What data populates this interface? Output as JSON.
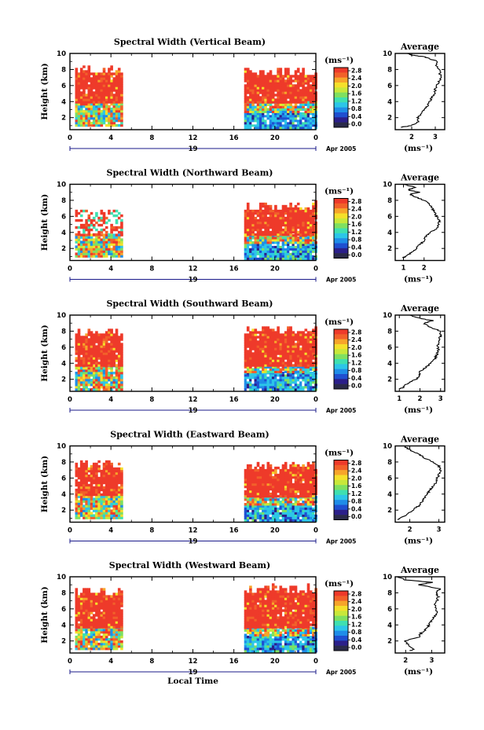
{
  "colors": {
    "palette": [
      "#2a2a4a",
      "#2b1f8a",
      "#1f4fd0",
      "#1f8de8",
      "#2cc6e8",
      "#3fe0b0",
      "#7fe060",
      "#c8e83a",
      "#f5e02a",
      "#f7a52a",
      "#f2612a",
      "#ee3a2a"
    ],
    "axis": "#000000",
    "profile_line": "#000000",
    "date_line": "#1a1a8a"
  },
  "chart_data": [
    {
      "type": "heatmap",
      "title": "Spectral Width (Vertical Beam)",
      "ylabel": "Height (km)",
      "xlim": [
        0,
        24
      ],
      "ylim": [
        0.5,
        10
      ],
      "xticks": [
        "0",
        "4",
        "8",
        "12",
        "16",
        "20",
        "0"
      ],
      "yticks": [
        "2",
        "4",
        "6",
        "8",
        "10"
      ],
      "date_label": "19",
      "date_suffix": "Apr 2005",
      "colorbar": {
        "unit": "(ms⁻¹)",
        "ticks": [
          "2.8",
          "2.4",
          "2.0",
          "1.6",
          "1.2",
          "0.8",
          "0.4",
          "0.0"
        ]
      },
      "blocks": [
        {
          "t0": 0.5,
          "t1": 5.0,
          "h0": 0.9,
          "h1": 3.8,
          "level": "mixed"
        },
        {
          "t0": 0.5,
          "t1": 5.0,
          "h0": 3.8,
          "h1": 8.3,
          "level": "high"
        },
        {
          "t0": 17.0,
          "t1": 24.0,
          "h0": 0.6,
          "h1": 2.6,
          "level": "low"
        },
        {
          "t0": 17.0,
          "t1": 24.0,
          "h0": 2.6,
          "h1": 3.8,
          "level": "mixed"
        },
        {
          "t0": 17.0,
          "t1": 24.0,
          "h0": 3.8,
          "h1": 8.2,
          "level": "high"
        }
      ],
      "average": {
        "title": "Average",
        "xlabel": "(ms⁻¹)",
        "xlim": [
          1.3,
          3.4
        ],
        "xticks": [
          2,
          3
        ],
        "heights": [
          0.8,
          1.0,
          1.5,
          2.0,
          2.5,
          3.0,
          3.5,
          4.0,
          4.5,
          5.0,
          5.5,
          6.0,
          6.5,
          7.0,
          7.5,
          8.0,
          8.5,
          9.0,
          9.3,
          9.6,
          9.8,
          10.0
        ],
        "values": [
          1.5,
          2.0,
          2.3,
          2.25,
          2.4,
          2.55,
          2.7,
          2.75,
          2.85,
          2.95,
          3.0,
          3.05,
          3.15,
          3.25,
          3.2,
          3.2,
          3.0,
          3.1,
          2.8,
          2.5,
          2.0,
          1.8
        ]
      }
    },
    {
      "type": "heatmap",
      "title": "Spectral Width (Northward Beam)",
      "ylabel": "Height (km)",
      "xlim": [
        0,
        24
      ],
      "ylim": [
        0.5,
        10
      ],
      "xticks": [
        "0",
        "4",
        "8",
        "12",
        "16",
        "20",
        "0"
      ],
      "yticks": [
        "2",
        "4",
        "6",
        "8",
        "10"
      ],
      "date_label": "19",
      "date_suffix": "Apr 2005",
      "colorbar": {
        "unit": "(ms⁻¹)",
        "ticks": [
          "2.8",
          "2.4",
          "2.0",
          "1.6",
          "1.2",
          "0.8",
          "0.4",
          "0.0"
        ]
      },
      "blocks": [
        {
          "t0": 0.5,
          "t1": 5.0,
          "h0": 0.9,
          "h1": 3.6,
          "level": "mixed"
        },
        {
          "t0": 0.5,
          "t1": 5.0,
          "h0": 3.6,
          "h1": 6.8,
          "level": "sparse"
        },
        {
          "t0": 17.0,
          "t1": 24.0,
          "h0": 0.6,
          "h1": 2.6,
          "level": "low"
        },
        {
          "t0": 17.0,
          "t1": 24.0,
          "h0": 2.6,
          "h1": 3.6,
          "level": "mixed"
        },
        {
          "t0": 17.0,
          "t1": 24.0,
          "h0": 3.6,
          "h1": 7.8,
          "level": "high"
        }
      ],
      "average": {
        "title": "Average",
        "xlabel": "(ms⁻¹)",
        "xlim": [
          0.6,
          3.0
        ],
        "xticks": [
          1,
          2
        ],
        "heights": [
          0.8,
          1.0,
          1.5,
          2.0,
          2.5,
          3.0,
          3.5,
          4.0,
          4.5,
          5.0,
          5.5,
          6.0,
          6.5,
          7.0,
          7.5,
          8.0,
          8.5,
          8.8,
          9.0,
          9.3,
          9.6,
          10.0
        ],
        "values": [
          1.0,
          1.1,
          1.4,
          1.6,
          1.8,
          2.0,
          2.1,
          2.3,
          2.6,
          2.7,
          2.75,
          2.6,
          2.5,
          2.4,
          2.3,
          2.0,
          1.5,
          1.3,
          1.8,
          1.2,
          1.6,
          1.0
        ]
      }
    },
    {
      "type": "heatmap",
      "title": "Spectral Width (Southward Beam)",
      "ylabel": "Height (km)",
      "xlim": [
        0,
        24
      ],
      "ylim": [
        0.5,
        10
      ],
      "xticks": [
        "0",
        "4",
        "8",
        "12",
        "16",
        "20",
        "0"
      ],
      "yticks": [
        "2",
        "4",
        "6",
        "8",
        "10"
      ],
      "date_label": "19",
      "date_suffix": "Apr 2005",
      "colorbar": {
        "unit": "(ms⁻¹)",
        "ticks": [
          "2.8",
          "2.4",
          "2.0",
          "1.6",
          "1.2",
          "0.8",
          "0.4",
          "0.0"
        ]
      },
      "blocks": [
        {
          "t0": 0.5,
          "t1": 5.0,
          "h0": 0.6,
          "h1": 3.6,
          "level": "mixed"
        },
        {
          "t0": 0.5,
          "t1": 5.0,
          "h0": 3.6,
          "h1": 8.3,
          "level": "high"
        },
        {
          "t0": 17.0,
          "t1": 24.0,
          "h0": 0.6,
          "h1": 2.8,
          "level": "low"
        },
        {
          "t0": 17.0,
          "t1": 24.0,
          "h0": 2.8,
          "h1": 3.6,
          "level": "mixed"
        },
        {
          "t0": 17.0,
          "t1": 24.0,
          "h0": 3.6,
          "h1": 8.6,
          "level": "high"
        }
      ],
      "average": {
        "title": "Average",
        "xlabel": "(ms⁻¹)",
        "xlim": [
          0.8,
          3.2
        ],
        "xticks": [
          1,
          2,
          3
        ],
        "heights": [
          0.8,
          1.0,
          1.5,
          2.0,
          2.5,
          3.0,
          3.5,
          4.0,
          4.5,
          5.0,
          5.5,
          6.0,
          6.5,
          7.0,
          7.5,
          8.0,
          8.5,
          9.0,
          9.3,
          9.6,
          10.0
        ],
        "values": [
          1.0,
          1.2,
          1.4,
          1.8,
          2.0,
          2.0,
          2.3,
          2.5,
          2.7,
          2.8,
          2.9,
          2.85,
          2.9,
          2.95,
          3.0,
          3.0,
          2.5,
          2.2,
          2.6,
          2.0,
          1.5
        ]
      }
    },
    {
      "type": "heatmap",
      "title": "Spectral Width (Eastward Beam)",
      "ylabel": "Height (km)",
      "xlim": [
        0,
        24
      ],
      "ylim": [
        0.5,
        10
      ],
      "xticks": [
        "0",
        "4",
        "8",
        "12",
        "16",
        "20",
        "0"
      ],
      "yticks": [
        "2",
        "4",
        "6",
        "8",
        "10"
      ],
      "date_label": "19",
      "date_suffix": "Apr 2005",
      "colorbar": {
        "unit": "(ms⁻¹)",
        "ticks": [
          "2.8",
          "2.4",
          "2.0",
          "1.6",
          "1.2",
          "0.8",
          "0.4",
          "0.0"
        ]
      },
      "blocks": [
        {
          "t0": 0.5,
          "t1": 5.0,
          "h0": 0.9,
          "h1": 3.8,
          "level": "mixed"
        },
        {
          "t0": 0.5,
          "t1": 5.0,
          "h0": 3.8,
          "h1": 8.2,
          "level": "high"
        },
        {
          "t0": 17.0,
          "t1": 24.0,
          "h0": 0.6,
          "h1": 2.6,
          "level": "low"
        },
        {
          "t0": 17.0,
          "t1": 24.0,
          "h0": 2.6,
          "h1": 3.6,
          "level": "mixed"
        },
        {
          "t0": 17.0,
          "t1": 24.0,
          "h0": 3.6,
          "h1": 8.0,
          "level": "high"
        }
      ],
      "average": {
        "title": "Average",
        "xlabel": "(ms⁻¹)",
        "xlim": [
          1.5,
          3.2
        ],
        "xticks": [
          2,
          3
        ],
        "heights": [
          0.8,
          1.0,
          1.5,
          2.0,
          2.5,
          3.0,
          3.5,
          4.0,
          4.5,
          5.0,
          5.5,
          6.0,
          6.5,
          7.0,
          7.5,
          8.0,
          8.5,
          9.0,
          9.5,
          10.0
        ],
        "values": [
          1.6,
          1.7,
          1.9,
          2.1,
          2.3,
          2.4,
          2.5,
          2.6,
          2.7,
          2.8,
          2.9,
          2.95,
          3.0,
          3.05,
          3.0,
          2.8,
          2.5,
          2.3,
          2.0,
          1.8
        ]
      }
    },
    {
      "type": "heatmap",
      "title": "Spectral Width (Westward Beam)",
      "ylabel": "Height (km)",
      "xlabel": "Local Time",
      "xlim": [
        0,
        24
      ],
      "ylim": [
        0.5,
        10
      ],
      "xticks": [
        "0",
        "4",
        "8",
        "12",
        "16",
        "20",
        "0"
      ],
      "yticks": [
        "2",
        "4",
        "6",
        "8",
        "10"
      ],
      "date_label": "19",
      "date_suffix": "Apr 2005",
      "colorbar": {
        "unit": "(ms⁻¹)",
        "ticks": [
          "2.8",
          "2.4",
          "2.0",
          "1.6",
          "1.2",
          "0.8",
          "0.4",
          "0.0"
        ]
      },
      "blocks": [
        {
          "t0": 0.5,
          "t1": 5.0,
          "h0": 0.9,
          "h1": 3.6,
          "level": "mixed"
        },
        {
          "t0": 0.5,
          "t1": 5.0,
          "h0": 3.6,
          "h1": 8.6,
          "level": "high"
        },
        {
          "t0": 17.0,
          "t1": 24.0,
          "h0": 0.6,
          "h1": 2.6,
          "level": "low"
        },
        {
          "t0": 17.0,
          "t1": 24.0,
          "h0": 2.6,
          "h1": 3.6,
          "level": "mixed"
        },
        {
          "t0": 17.0,
          "t1": 24.0,
          "h0": 3.6,
          "h1": 9.0,
          "level": "high"
        }
      ],
      "average": {
        "title": "Average",
        "xlabel": "(ms⁻¹)",
        "xlim": [
          1.6,
          3.5
        ],
        "xticks": [
          2,
          3
        ],
        "heights": [
          0.8,
          1.0,
          1.5,
          2.0,
          2.5,
          3.0,
          3.5,
          4.0,
          4.5,
          5.0,
          5.5,
          6.0,
          6.5,
          7.0,
          7.5,
          8.0,
          8.5,
          9.0,
          9.3,
          9.6,
          10.0
        ],
        "values": [
          2.2,
          2.3,
          2.1,
          2.0,
          2.5,
          2.6,
          2.8,
          2.9,
          3.0,
          3.1,
          3.2,
          3.2,
          3.1,
          3.2,
          3.25,
          3.2,
          3.3,
          2.5,
          3.0,
          2.0,
          1.7
        ]
      }
    }
  ]
}
